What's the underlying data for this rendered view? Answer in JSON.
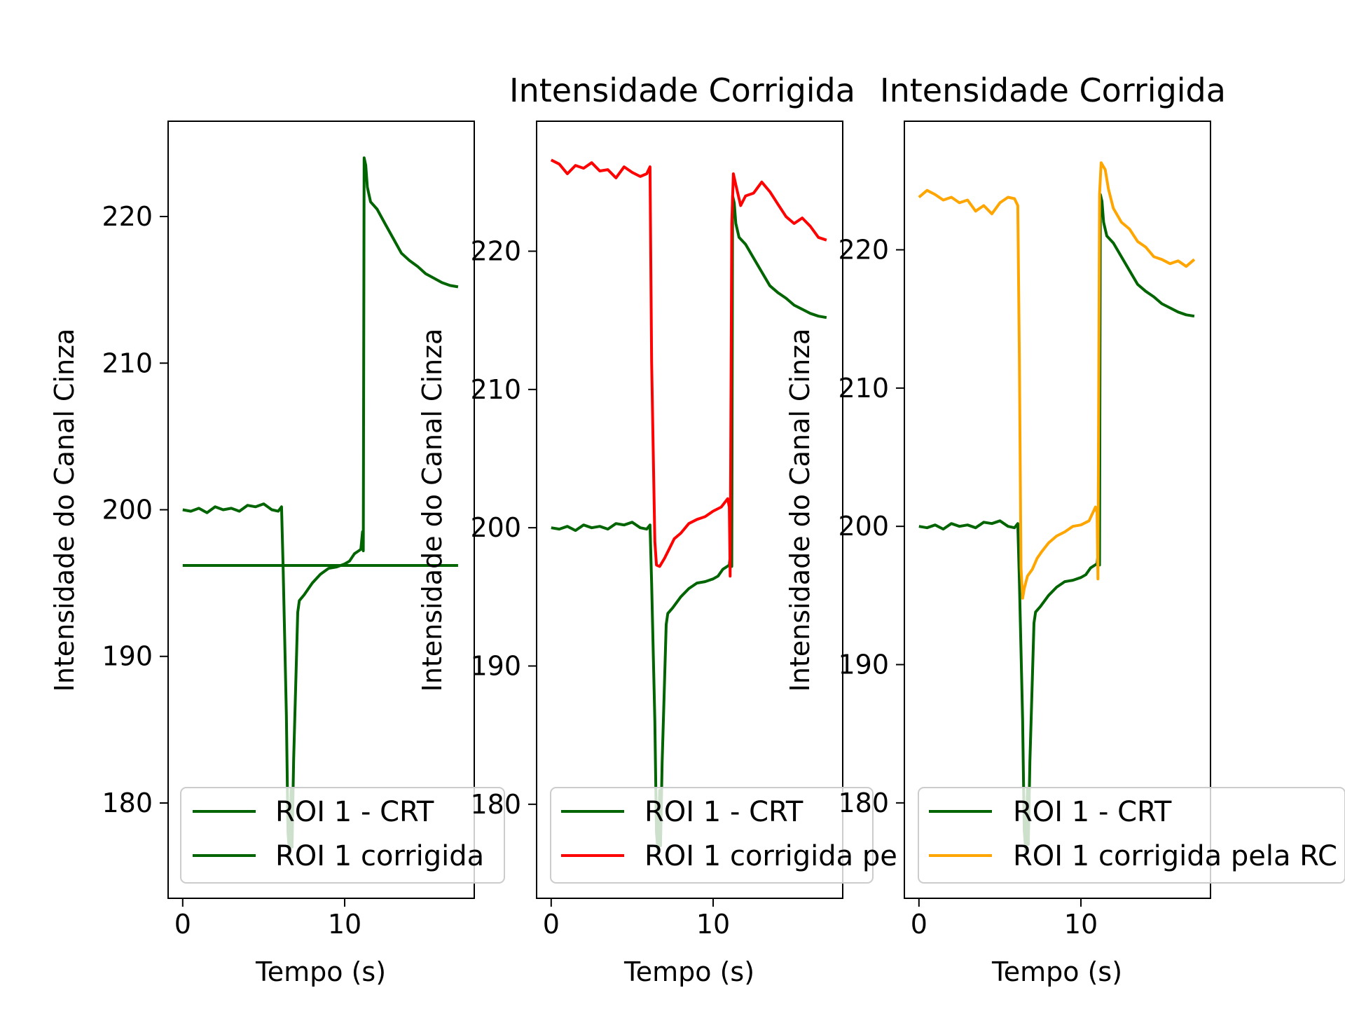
{
  "figure": {
    "background": "#ffffff"
  },
  "colors": {
    "dark_green": "#006400",
    "red": "#ff0000",
    "orange": "#ffa500"
  },
  "chart_data": [
    {
      "type": "line",
      "title": "",
      "xlabel": "Tempo (s)",
      "ylabel": "Intensidade do Canal Cinza",
      "xlim": [
        -0.9,
        18
      ],
      "ylim": [
        173.5,
        226.5
      ],
      "xticks": [
        0,
        10
      ],
      "yticks": [
        180,
        190,
        200,
        210,
        220
      ],
      "legend": {
        "placement": "lower-left",
        "entries": [
          "ROI 1 - CRT",
          "ROI 1 corrigida"
        ]
      },
      "series": [
        {
          "name": "ROI 1 - CRT",
          "color": "#006400",
          "points": [
            [
              0,
              200
            ],
            [
              0.5,
              199.9
            ],
            [
              1,
              200.1
            ],
            [
              1.5,
              199.8
            ],
            [
              2,
              200.2
            ],
            [
              2.5,
              200
            ],
            [
              3,
              200.1
            ],
            [
              3.5,
              199.9
            ],
            [
              4,
              200.3
            ],
            [
              4.5,
              200.2
            ],
            [
              5,
              200.4
            ],
            [
              5.5,
              200
            ],
            [
              5.9,
              199.9
            ],
            [
              6.1,
              200.2
            ],
            [
              6.2,
              196
            ],
            [
              6.4,
              186
            ],
            [
              6.5,
              178
            ],
            [
              6.6,
              176.5
            ],
            [
              6.7,
              181
            ],
            [
              6.75,
              177
            ],
            [
              6.85,
              183
            ],
            [
              7,
              189
            ],
            [
              7.1,
              193
            ],
            [
              7.2,
              193.8
            ],
            [
              7.5,
              194.2
            ],
            [
              8,
              195
            ],
            [
              8.5,
              195.6
            ],
            [
              9,
              196
            ],
            [
              9.5,
              196.1
            ],
            [
              10,
              196.3
            ],
            [
              10.3,
              196.5
            ],
            [
              10.6,
              197
            ],
            [
              11,
              197.3
            ],
            [
              11.1,
              198.5
            ],
            [
              11.15,
              197.2
            ],
            [
              11.2,
              224
            ],
            [
              11.3,
              223.5
            ],
            [
              11.4,
              222
            ],
            [
              11.6,
              221
            ],
            [
              12,
              220.5
            ],
            [
              12.5,
              219.5
            ],
            [
              13,
              218.5
            ],
            [
              13.5,
              217.5
            ],
            [
              14,
              217
            ],
            [
              14.5,
              216.6
            ],
            [
              15,
              216.1
            ],
            [
              15.5,
              215.8
            ],
            [
              16,
              215.5
            ],
            [
              16.5,
              215.3
            ],
            [
              17,
              215.2
            ]
          ]
        },
        {
          "name": "ROI 1 corrigida",
          "color": "#006400",
          "points": [
            [
              0,
              196.2
            ],
            [
              17,
              196.2
            ]
          ]
        }
      ]
    },
    {
      "type": "line",
      "title": "Intensidade Corrigida",
      "xlabel": "Tempo (s)",
      "ylabel": "Intensidade do Canal Cinza",
      "xlim": [
        -0.9,
        18
      ],
      "ylim": [
        173.2,
        229.4
      ],
      "xticks": [
        0,
        10
      ],
      "yticks": [
        180,
        190,
        200,
        210,
        220
      ],
      "legend": {
        "placement": "lower-left",
        "entries": [
          "ROI 1 - CRT",
          "ROI 1 corrigida pe"
        ]
      },
      "series": [
        {
          "name": "ROI 1 - CRT",
          "color": "#006400",
          "points": [
            [
              0,
              200
            ],
            [
              0.5,
              199.9
            ],
            [
              1,
              200.1
            ],
            [
              1.5,
              199.8
            ],
            [
              2,
              200.2
            ],
            [
              2.5,
              200
            ],
            [
              3,
              200.1
            ],
            [
              3.5,
              199.9
            ],
            [
              4,
              200.3
            ],
            [
              4.5,
              200.2
            ],
            [
              5,
              200.4
            ],
            [
              5.5,
              200
            ],
            [
              5.9,
              199.9
            ],
            [
              6.1,
              200.2
            ],
            [
              6.2,
              196
            ],
            [
              6.4,
              186
            ],
            [
              6.5,
              178
            ],
            [
              6.6,
              176.5
            ],
            [
              6.7,
              181
            ],
            [
              6.75,
              177
            ],
            [
              6.85,
              183
            ],
            [
              7,
              189
            ],
            [
              7.1,
              193
            ],
            [
              7.2,
              193.8
            ],
            [
              7.5,
              194.2
            ],
            [
              8,
              195
            ],
            [
              8.5,
              195.6
            ],
            [
              9,
              196
            ],
            [
              9.5,
              196.1
            ],
            [
              10,
              196.3
            ],
            [
              10.3,
              196.5
            ],
            [
              10.6,
              197
            ],
            [
              11,
              197.3
            ],
            [
              11.1,
              198.5
            ],
            [
              11.15,
              197.2
            ],
            [
              11.2,
              224
            ],
            [
              11.3,
              223.5
            ],
            [
              11.4,
              222
            ],
            [
              11.6,
              221
            ],
            [
              12,
              220.5
            ],
            [
              12.5,
              219.5
            ],
            [
              13,
              218.5
            ],
            [
              13.5,
              217.5
            ],
            [
              14,
              217
            ],
            [
              14.5,
              216.6
            ],
            [
              15,
              216.1
            ],
            [
              15.5,
              215.8
            ],
            [
              16,
              215.5
            ],
            [
              16.5,
              215.3
            ],
            [
              17,
              215.2
            ]
          ]
        },
        {
          "name": "ROI 1 corrigida pe",
          "color": "#ff0000",
          "points": [
            [
              0,
              226.6
            ],
            [
              0.5,
              226.3
            ],
            [
              1,
              225.6
            ],
            [
              1.5,
              226.2
            ],
            [
              2,
              226
            ],
            [
              2.5,
              226.4
            ],
            [
              3,
              225.8
            ],
            [
              3.5,
              225.9
            ],
            [
              4,
              225.3
            ],
            [
              4.5,
              226.1
            ],
            [
              5,
              225.7
            ],
            [
              5.5,
              225.4
            ],
            [
              5.9,
              225.6
            ],
            [
              6.1,
              226.1
            ],
            [
              6.2,
              212
            ],
            [
              6.4,
              199
            ],
            [
              6.5,
              197.3
            ],
            [
              6.7,
              197.2
            ],
            [
              7,
              197.8
            ],
            [
              7.3,
              198.5
            ],
            [
              7.6,
              199.2
            ],
            [
              8,
              199.6
            ],
            [
              8.5,
              200.3
            ],
            [
              9,
              200.6
            ],
            [
              9.5,
              200.8
            ],
            [
              10,
              201.2
            ],
            [
              10.5,
              201.5
            ],
            [
              10.9,
              202.1
            ],
            [
              11,
              201.5
            ],
            [
              11.05,
              196.5
            ],
            [
              11.15,
              222
            ],
            [
              11.25,
              225.6
            ],
            [
              11.4,
              224.8
            ],
            [
              11.7,
              223.3
            ],
            [
              12,
              224
            ],
            [
              12.5,
              224.2
            ],
            [
              13,
              225
            ],
            [
              13.5,
              224.3
            ],
            [
              14,
              223.4
            ],
            [
              14.5,
              222.5
            ],
            [
              15,
              222
            ],
            [
              15.5,
              222.4
            ],
            [
              16,
              221.8
            ],
            [
              16.5,
              221
            ],
            [
              17,
              220.8
            ]
          ]
        }
      ]
    },
    {
      "type": "line",
      "title": "Intensidade Corrigida",
      "xlabel": "Tempo (s)",
      "ylabel": "Intensidade do Canal Cinza",
      "xlim": [
        -0.9,
        18
      ],
      "ylim": [
        173.1,
        229.3
      ],
      "xticks": [
        0,
        10
      ],
      "yticks": [
        180,
        190,
        200,
        210,
        220
      ],
      "legend": {
        "placement": "lower-left",
        "entries": [
          "ROI 1 - CRT",
          "ROI 1 corrigida pela RC"
        ]
      },
      "series": [
        {
          "name": "ROI 1 - CRT",
          "color": "#006400",
          "points": [
            [
              0,
              200
            ],
            [
              0.5,
              199.9
            ],
            [
              1,
              200.1
            ],
            [
              1.5,
              199.8
            ],
            [
              2,
              200.2
            ],
            [
              2.5,
              200
            ],
            [
              3,
              200.1
            ],
            [
              3.5,
              199.9
            ],
            [
              4,
              200.3
            ],
            [
              4.5,
              200.2
            ],
            [
              5,
              200.4
            ],
            [
              5.5,
              200
            ],
            [
              5.9,
              199.9
            ],
            [
              6.1,
              200.2
            ],
            [
              6.2,
              196
            ],
            [
              6.4,
              186
            ],
            [
              6.5,
              178
            ],
            [
              6.6,
              176.5
            ],
            [
              6.7,
              181
            ],
            [
              6.75,
              177
            ],
            [
              6.85,
              183
            ],
            [
              7,
              189
            ],
            [
              7.1,
              193
            ],
            [
              7.2,
              193.8
            ],
            [
              7.5,
              194.2
            ],
            [
              8,
              195
            ],
            [
              8.5,
              195.6
            ],
            [
              9,
              196
            ],
            [
              9.5,
              196.1
            ],
            [
              10,
              196.3
            ],
            [
              10.3,
              196.5
            ],
            [
              10.6,
              197
            ],
            [
              11,
              197.3
            ],
            [
              11.1,
              198.5
            ],
            [
              11.15,
              197.2
            ],
            [
              11.2,
              224
            ],
            [
              11.3,
              223.5
            ],
            [
              11.4,
              222
            ],
            [
              11.6,
              221
            ],
            [
              12,
              220.5
            ],
            [
              12.5,
              219.5
            ],
            [
              13,
              218.5
            ],
            [
              13.5,
              217.5
            ],
            [
              14,
              217
            ],
            [
              14.5,
              216.6
            ],
            [
              15,
              216.1
            ],
            [
              15.5,
              215.8
            ],
            [
              16,
              215.5
            ],
            [
              16.5,
              215.3
            ],
            [
              17,
              215.2
            ]
          ]
        },
        {
          "name": "ROI 1 corrigida pela RC",
          "color": "#ffa500",
          "points": [
            [
              0,
              223.8
            ],
            [
              0.5,
              224.3
            ],
            [
              1,
              224
            ],
            [
              1.5,
              223.6
            ],
            [
              2,
              223.8
            ],
            [
              2.5,
              223.4
            ],
            [
              3,
              223.6
            ],
            [
              3.5,
              222.8
            ],
            [
              4,
              223.2
            ],
            [
              4.5,
              222.6
            ],
            [
              5,
              223.4
            ],
            [
              5.5,
              223.8
            ],
            [
              5.9,
              223.7
            ],
            [
              6.1,
              223.2
            ],
            [
              6.2,
              212
            ],
            [
              6.3,
              197
            ],
            [
              6.4,
              194.8
            ],
            [
              6.5,
              195.5
            ],
            [
              6.7,
              196.4
            ],
            [
              7,
              196.9
            ],
            [
              7.3,
              197.7
            ],
            [
              7.6,
              198.2
            ],
            [
              8,
              198.8
            ],
            [
              8.5,
              199.3
            ],
            [
              9,
              199.6
            ],
            [
              9.5,
              200
            ],
            [
              10,
              200.1
            ],
            [
              10.5,
              200.4
            ],
            [
              10.9,
              201.4
            ],
            [
              11,
              201
            ],
            [
              11.05,
              196.2
            ],
            [
              11.15,
              224
            ],
            [
              11.25,
              226.3
            ],
            [
              11.5,
              225.8
            ],
            [
              11.7,
              224.4
            ],
            [
              12,
              223
            ],
            [
              12.5,
              222
            ],
            [
              13,
              221.5
            ],
            [
              13.5,
              220.6
            ],
            [
              14,
              220.2
            ],
            [
              14.5,
              219.5
            ],
            [
              15,
              219.3
            ],
            [
              15.5,
              219
            ],
            [
              16,
              219.2
            ],
            [
              16.5,
              218.8
            ],
            [
              17,
              219.3
            ]
          ]
        }
      ]
    }
  ]
}
